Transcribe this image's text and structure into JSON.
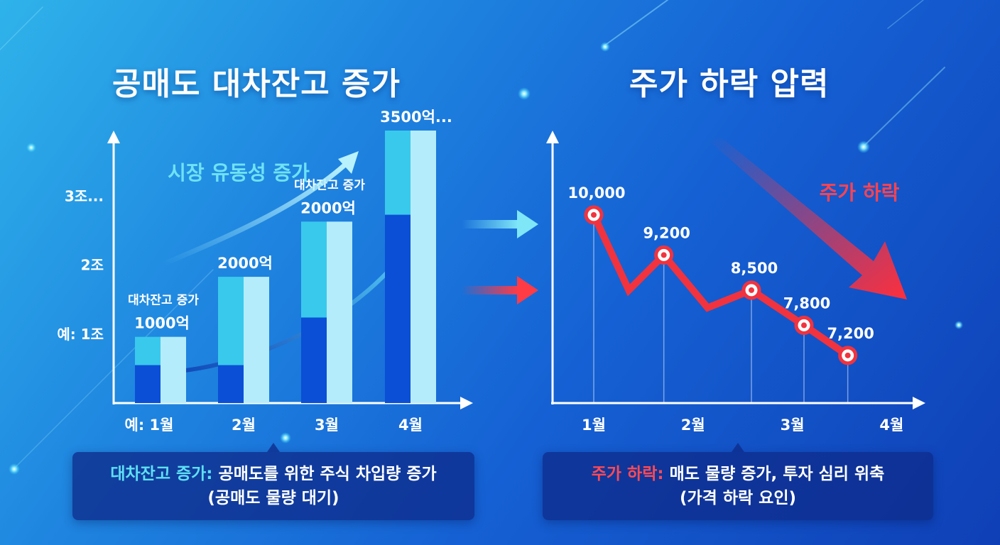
{
  "left_panel": {
    "title": "공매도 대차잔고 증가",
    "trend_label": "시장 유동성 증가",
    "callout": {
      "highlight": "대차잔고 증가:",
      "text": "공매도를 위한 주식 차입량 증가",
      "line2": "(공매도 물량 대기)"
    }
  },
  "right_panel": {
    "title": "주가 하락 압력",
    "trend_label": "주가 하락",
    "callout": {
      "highlight": "주가 하락:",
      "text": "매도 물량 증가, 투자 심리 위축",
      "line2": "(가격 하락 요인)"
    }
  },
  "colors": {
    "bar_dark": "#0b4fd6",
    "bar_mid": "#39c9ec",
    "bar_light": "#b5ecfb",
    "line_red": "#f0333e",
    "accent_cyan": "#5ee0f5"
  },
  "chart_data": [
    {
      "type": "bar",
      "title": "공매도 대차잔고 증가",
      "categories": [
        "예: 1월",
        "2월",
        "3월",
        "4월"
      ],
      "ytick_labels": [
        "예: 1조",
        "2조",
        "3조..."
      ],
      "ytick_values": [
        1,
        2,
        3
      ],
      "ylim": [
        0,
        3.6
      ],
      "values": [
        0.96,
        1.83,
        2.63,
        3.95
      ],
      "dark_segment_values": [
        0.55,
        0.55,
        1.24,
        2.73
      ],
      "data_labels": [
        {
          "line1": "대차잔고 증가",
          "line2": "1000억"
        },
        {
          "line1": "",
          "line2": "2000억"
        },
        {
          "line1": "대차잔고 증가",
          "line2": "2000억"
        },
        {
          "line1": "",
          "line2": "3500억..."
        }
      ],
      "annotations": [
        "시장 유동성 증가"
      ]
    },
    {
      "type": "line",
      "title": "주가 하락 압력",
      "xtick_labels": [
        "1월",
        "2월",
        "3월",
        "4월"
      ],
      "x": [
        1.0,
        1.4,
        1.8,
        2.3,
        2.8,
        3.4,
        3.9
      ],
      "values": [
        10000,
        8500,
        9200,
        8150,
        8500,
        7800,
        7200
      ],
      "point_labels": [
        "10,000",
        "",
        "9,200",
        "",
        "8,500",
        "7,800",
        "7,200"
      ],
      "ylim": [
        6250,
        11200
      ],
      "annotations": [
        "주가 하락"
      ]
    }
  ]
}
